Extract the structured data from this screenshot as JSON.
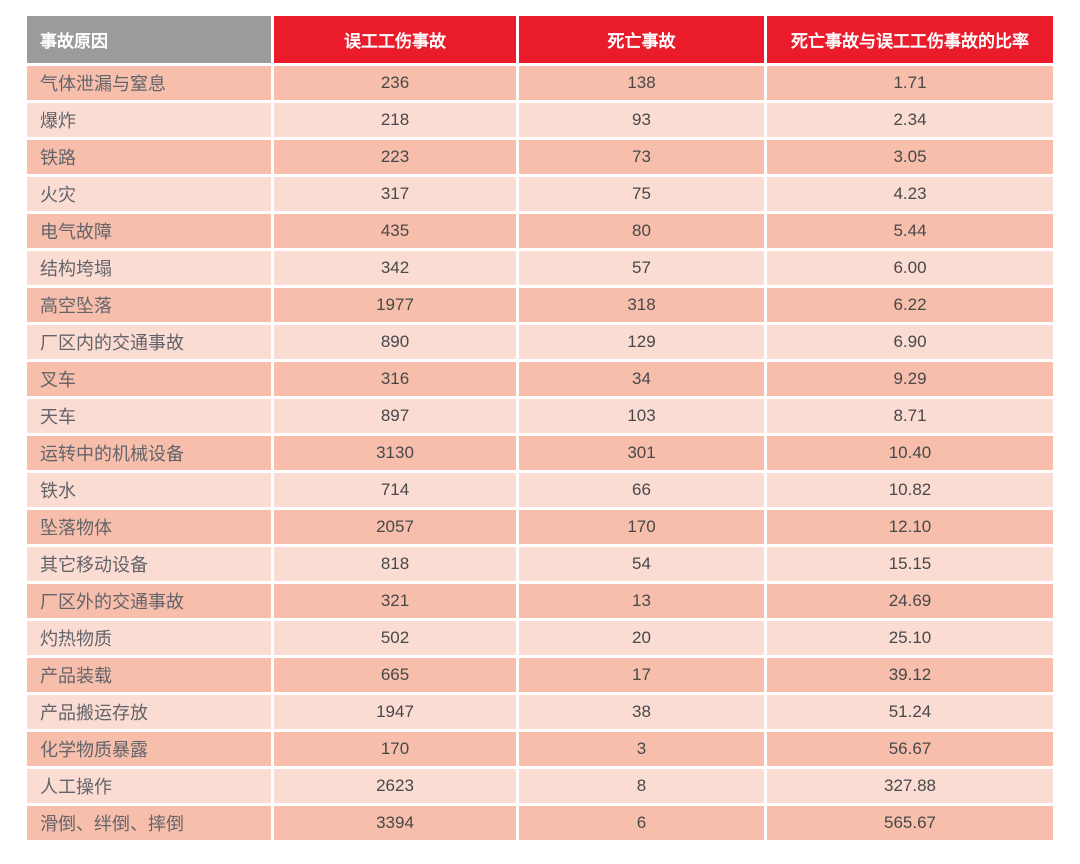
{
  "page": {
    "background": "#ffffff"
  },
  "colors": {
    "header_gray": "#9b9b9b",
    "header_red": "#ea1c2c",
    "header_text": "#ffffff",
    "row_dark_bg": "#f7bfab",
    "row_light_bg": "#fbdcd2",
    "label_text": "#63646b",
    "value_text": "#48484b"
  },
  "chart_data": {
    "type": "table",
    "columns": [
      "事故原因",
      "误工工伤事故",
      "死亡事故",
      "死亡事故与误工工伤事故的比率"
    ],
    "rows": [
      {
        "cause": "气体泄漏与窒息",
        "lost_time": 236,
        "fatal": 138,
        "ratio": "1.71"
      },
      {
        "cause": "爆炸",
        "lost_time": 218,
        "fatal": 93,
        "ratio": "2.34"
      },
      {
        "cause": "铁路",
        "lost_time": 223,
        "fatal": 73,
        "ratio": "3.05"
      },
      {
        "cause": "火灾",
        "lost_time": 317,
        "fatal": 75,
        "ratio": "4.23"
      },
      {
        "cause": "电气故障",
        "lost_time": 435,
        "fatal": 80,
        "ratio": "5.44"
      },
      {
        "cause": "结构垮塌",
        "lost_time": 342,
        "fatal": 57,
        "ratio": "6.00"
      },
      {
        "cause": "高空坠落",
        "lost_time": 1977,
        "fatal": 318,
        "ratio": "6.22"
      },
      {
        "cause": "厂区内的交通事故",
        "lost_time": 890,
        "fatal": 129,
        "ratio": "6.90"
      },
      {
        "cause": "叉车",
        "lost_time": 316,
        "fatal": 34,
        "ratio": "9.29"
      },
      {
        "cause": "天车",
        "lost_time": 897,
        "fatal": 103,
        "ratio": "8.71"
      },
      {
        "cause": "运转中的机械设备",
        "lost_time": 3130,
        "fatal": 301,
        "ratio": "10.40"
      },
      {
        "cause": "铁水",
        "lost_time": 714,
        "fatal": 66,
        "ratio": "10.82"
      },
      {
        "cause": "坠落物体",
        "lost_time": 2057,
        "fatal": 170,
        "ratio": "12.10"
      },
      {
        "cause": "其它移动设备",
        "lost_time": 818,
        "fatal": 54,
        "ratio": "15.15"
      },
      {
        "cause": "厂区外的交通事故",
        "lost_time": 321,
        "fatal": 13,
        "ratio": "24.69"
      },
      {
        "cause": "灼热物质",
        "lost_time": 502,
        "fatal": 20,
        "ratio": "25.10"
      },
      {
        "cause": "产品装载",
        "lost_time": 665,
        "fatal": 17,
        "ratio": "39.12"
      },
      {
        "cause": "产品搬运存放",
        "lost_time": 1947,
        "fatal": 38,
        "ratio": "51.24"
      },
      {
        "cause": "化学物质暴露",
        "lost_time": 170,
        "fatal": 3,
        "ratio": "56.67"
      },
      {
        "cause": "人工操作",
        "lost_time": 2623,
        "fatal": 8,
        "ratio": "327.88"
      },
      {
        "cause": "滑倒、绊倒、摔倒",
        "lost_time": 3394,
        "fatal": 6,
        "ratio": "565.67"
      }
    ]
  }
}
